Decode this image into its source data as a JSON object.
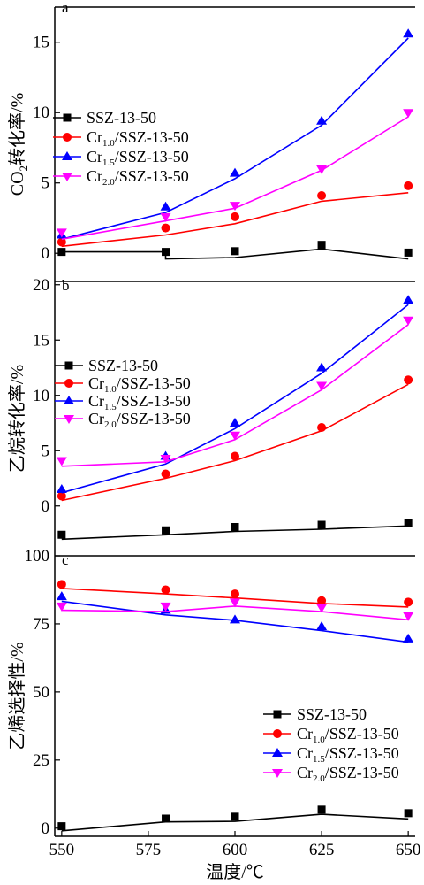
{
  "x_axis": {
    "label": "温度/℃",
    "ticks": [
      550,
      575,
      600,
      625,
      650
    ],
    "range": [
      548,
      652
    ]
  },
  "colors": {
    "SSZ-13-50": "#000000",
    "Cr1.0/SSZ-13-50": "#ff0000",
    "Cr1.5/SSZ-13-50": "#0000ff",
    "Cr2.0/SSZ-13-50": "#ff00ff"
  },
  "chart_data": [
    {
      "type": "line",
      "panel": "a",
      "ylabel": "CO2转化率/%",
      "ylabel_main": "CO",
      "ylabel_sub": "2",
      "ylabel_rest": "转化率/%",
      "ylim": [
        -2,
        17.5
      ],
      "yticks": [
        0,
        5,
        10,
        15
      ],
      "legend_placement": "upper-left",
      "x": [
        550,
        580,
        600,
        625,
        650
      ],
      "series": [
        {
          "name": "SSZ-13-50",
          "base": "SSZ-13-50",
          "sub": "",
          "marker": "square",
          "values": [
            0.1,
            0.1,
            0.15,
            0.6,
            0.05
          ],
          "fit": [
            [
              550,
              0.1
            ],
            [
              580,
              0.1
            ],
            [
              580,
              -0.4
            ],
            [
              600,
              -0.3
            ],
            [
              625,
              0.3
            ],
            [
              650,
              -0.4
            ]
          ]
        },
        {
          "name": "Cr1.0/SSZ-13-50",
          "base": "Cr",
          "sub": "1.0",
          "rest": "/SSZ-13-50",
          "marker": "circle",
          "values": [
            0.8,
            1.8,
            2.6,
            4.1,
            4.8
          ],
          "fit": [
            [
              550,
              0.5
            ],
            [
              580,
              1.3
            ],
            [
              600,
              2.1
            ],
            [
              625,
              3.7
            ],
            [
              650,
              4.3
            ]
          ]
        },
        {
          "name": "Cr1.5/SSZ-13-50",
          "base": "Cr",
          "sub": "1.5",
          "rest": "/SSZ-13-50",
          "marker": "triangle-up",
          "values": [
            1.3,
            3.3,
            5.7,
            9.4,
            15.6
          ],
          "fit": [
            [
              550,
              1.0
            ],
            [
              580,
              2.9
            ],
            [
              600,
              5.3
            ],
            [
              625,
              9.1
            ],
            [
              650,
              15.3
            ]
          ]
        },
        {
          "name": "Cr2.0/SSZ-13-50",
          "base": "Cr",
          "sub": "2.0",
          "rest": "/SSZ-13-50",
          "marker": "triangle-down",
          "values": [
            1.5,
            2.6,
            3.4,
            6.0,
            10.0
          ],
          "fit": [
            [
              550,
              1.0
            ],
            [
              580,
              2.3
            ],
            [
              600,
              3.2
            ],
            [
              625,
              5.9
            ],
            [
              650,
              9.7
            ]
          ]
        }
      ]
    },
    {
      "type": "line",
      "panel": "b",
      "ylabel": "乙烷转化率/%",
      "ylim": [
        -4.5,
        20.3
      ],
      "yticks": [
        0,
        5,
        10,
        15,
        20
      ],
      "legend_placement": "upper-left",
      "x": [
        550,
        580,
        600,
        625,
        650
      ],
      "series": [
        {
          "name": "SSZ-13-50",
          "base": "SSZ-13-50",
          "sub": "",
          "marker": "square",
          "values": [
            -2.6,
            -2.2,
            -1.9,
            -1.7,
            -1.5
          ],
          "fit": [
            [
              550,
              -3.0
            ],
            [
              580,
              -2.6
            ],
            [
              600,
              -2.3
            ],
            [
              625,
              -2.1
            ],
            [
              650,
              -1.8
            ]
          ]
        },
        {
          "name": "Cr1.0/SSZ-13-50",
          "base": "Cr",
          "sub": "1.0",
          "rest": "/SSZ-13-50",
          "marker": "circle",
          "values": [
            0.9,
            2.9,
            4.5,
            7.1,
            11.4
          ],
          "fit": [
            [
              550,
              0.5
            ],
            [
              580,
              2.5
            ],
            [
              600,
              4.1
            ],
            [
              625,
              6.8
            ],
            [
              650,
              11.0
            ]
          ]
        },
        {
          "name": "Cr1.5/SSZ-13-50",
          "base": "Cr",
          "sub": "1.5",
          "rest": "/SSZ-13-50",
          "marker": "triangle-up",
          "values": [
            1.5,
            4.5,
            7.5,
            12.5,
            18.6
          ],
          "fit": [
            [
              550,
              1.2
            ],
            [
              580,
              3.8
            ],
            [
              600,
              7.0
            ],
            [
              625,
              12.0
            ],
            [
              650,
              18.2
            ]
          ]
        },
        {
          "name": "Cr2.0/SSZ-13-50",
          "base": "Cr",
          "sub": "2.0",
          "rest": "/SSZ-13-50",
          "marker": "triangle-down",
          "values": [
            4.1,
            4.3,
            6.4,
            10.9,
            16.8
          ],
          "fit": [
            [
              550,
              3.6
            ],
            [
              580,
              4.0
            ],
            [
              600,
              6.0
            ],
            [
              625,
              10.5
            ],
            [
              650,
              16.4
            ]
          ]
        }
      ]
    },
    {
      "type": "line",
      "panel": "c",
      "ylabel": "乙烯选择性/%",
      "ylim": [
        -3,
        100
      ],
      "yticks": [
        0,
        25,
        50,
        75,
        100
      ],
      "legend_placement": "lower-right",
      "x": [
        550,
        580,
        600,
        625,
        650
      ],
      "series": [
        {
          "name": "SSZ-13-50",
          "base": "SSZ-13-50",
          "sub": "",
          "marker": "square",
          "values": [
            0.7,
            3.5,
            4.2,
            6.8,
            5.5
          ],
          "fit": [
            [
              550,
              -1.0
            ],
            [
              580,
              2.3
            ],
            [
              600,
              2.5
            ],
            [
              625,
              5.1
            ],
            [
              650,
              3.4
            ]
          ]
        },
        {
          "name": "Cr1.0/SSZ-13-50",
          "base": "Cr",
          "sub": "1.0",
          "rest": "/SSZ-13-50",
          "marker": "circle",
          "values": [
            89.5,
            87.5,
            86.0,
            83.5,
            83.0
          ],
          "fit": [
            [
              550,
              88.0
            ],
            [
              580,
              86.0
            ],
            [
              600,
              84.5
            ],
            [
              625,
              82.5
            ],
            [
              650,
              81.2
            ]
          ]
        },
        {
          "name": "Cr1.5/SSZ-13-50",
          "base": "Cr",
          "sub": "1.5",
          "rest": "/SSZ-13-50",
          "marker": "triangle-up",
          "values": [
            85.0,
            80.0,
            76.5,
            74.0,
            69.5
          ],
          "fit": [
            [
              550,
              83.3
            ],
            [
              580,
              78.3
            ],
            [
              600,
              76.3
            ],
            [
              625,
              72.5
            ],
            [
              650,
              68.3
            ]
          ]
        },
        {
          "name": "Cr2.0/SSZ-13-50",
          "base": "Cr",
          "sub": "2.0",
          "rest": "/SSZ-13-50",
          "marker": "triangle-down",
          "values": [
            81.5,
            81.5,
            83.0,
            81.0,
            78.0
          ],
          "fit": [
            [
              550,
              80.0
            ],
            [
              580,
              79.5
            ],
            [
              600,
              81.5
            ],
            [
              625,
              79.5
            ],
            [
              650,
              76.5
            ]
          ]
        }
      ]
    }
  ]
}
